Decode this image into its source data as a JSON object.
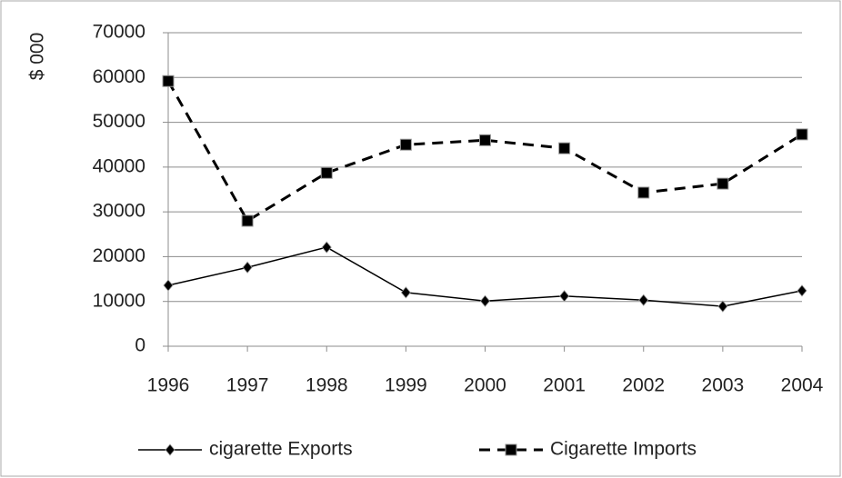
{
  "chart_data": {
    "type": "line",
    "y_label": "$ 000",
    "x": [
      1996,
      1997,
      1998,
      1999,
      2000,
      2001,
      2002,
      2003,
      2004
    ],
    "xlim": [
      1996,
      2004
    ],
    "xticks": [
      1996,
      1997,
      1998,
      1999,
      2000,
      2001,
      2002,
      2003,
      2004
    ],
    "ylim": [
      0,
      70000
    ],
    "yticks": [
      0,
      10000,
      20000,
      30000,
      40000,
      50000,
      60000,
      70000
    ],
    "grid": true,
    "legend": "bottom",
    "series": [
      {
        "name": "cigarette Exports",
        "color": "#000000",
        "marker": "diamond",
        "dashed": false,
        "values": [
          13600,
          17600,
          22100,
          12000,
          10100,
          11200,
          10300,
          8900,
          12400
        ]
      },
      {
        "name": "Cigarette Imports",
        "color": "#000000",
        "marker": "square",
        "dashed": true,
        "values": [
          59200,
          28000,
          38700,
          45000,
          46000,
          44200,
          34300,
          36300,
          47300
        ]
      }
    ]
  }
}
